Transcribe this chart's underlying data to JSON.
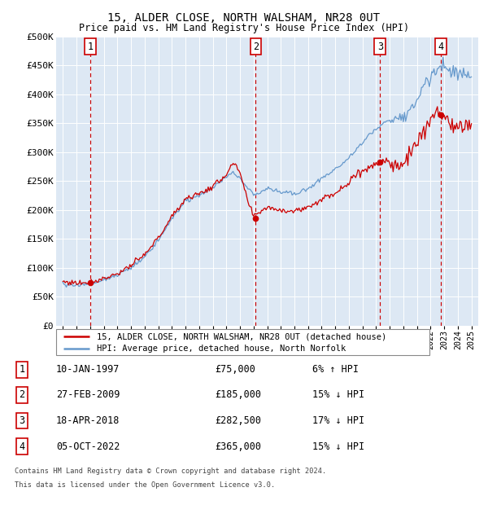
{
  "title1": "15, ALDER CLOSE, NORTH WALSHAM, NR28 0UT",
  "title2": "Price paid vs. HM Land Registry's House Price Index (HPI)",
  "legend_label_red": "15, ALDER CLOSE, NORTH WALSHAM, NR28 0UT (detached house)",
  "legend_label_blue": "HPI: Average price, detached house, North Norfolk",
  "footnote1": "Contains HM Land Registry data © Crown copyright and database right 2024.",
  "footnote2": "This data is licensed under the Open Government Licence v3.0.",
  "transactions": [
    {
      "num": 1,
      "date": "10-JAN-1997",
      "price": "£75,000",
      "relation": "6% ↑ HPI",
      "x": 1997.03
    },
    {
      "num": 2,
      "date": "27-FEB-2009",
      "price": "£185,000",
      "relation": "15% ↓ HPI",
      "x": 2009.16
    },
    {
      "num": 3,
      "date": "18-APR-2018",
      "price": "£282,500",
      "relation": "17% ↓ HPI",
      "x": 2018.29
    },
    {
      "num": 4,
      "date": "05-OCT-2022",
      "price": "£365,000",
      "relation": "15% ↓ HPI",
      "x": 2022.75
    }
  ],
  "transaction_prices": [
    75000,
    185000,
    282500,
    365000
  ],
  "ylim": [
    0,
    500000
  ],
  "yticks": [
    0,
    50000,
    100000,
    150000,
    200000,
    250000,
    300000,
    350000,
    400000,
    450000,
    500000
  ],
  "plot_bg": "#dde8f4",
  "grid_color": "#ffffff",
  "red_line_color": "#cc0000",
  "blue_line_color": "#6699cc",
  "dashed_color": "#cc0000",
  "dot_color": "#cc0000",
  "box_edge_color": "#cc0000",
  "hpi_keypoints": {
    "1995.0": 72000,
    "1996.0": 70000,
    "1997.0": 72000,
    "1998.0": 79000,
    "1999.0": 88000,
    "2000.0": 100000,
    "2001.0": 118000,
    "2002.0": 148000,
    "2003.0": 185000,
    "2004.0": 215000,
    "2005.0": 225000,
    "2006.0": 238000,
    "2007.0": 258000,
    "2007.5": 265000,
    "2008.0": 255000,
    "2008.5": 240000,
    "2009.0": 225000,
    "2009.5": 230000,
    "2010.0": 238000,
    "2011.0": 232000,
    "2012.0": 228000,
    "2013.0": 237000,
    "2014.0": 255000,
    "2015.0": 270000,
    "2016.0": 290000,
    "2017.0": 315000,
    "2017.5": 330000,
    "2018.0": 340000,
    "2018.5": 350000,
    "2019.0": 355000,
    "2019.5": 360000,
    "2020.0": 358000,
    "2020.5": 372000,
    "2021.0": 390000,
    "2021.5": 415000,
    "2022.0": 430000,
    "2022.5": 445000,
    "2023.0": 445000,
    "2023.5": 438000,
    "2024.0": 440000,
    "2025.0": 432000
  },
  "red_keypoints": {
    "1995.0": 76000,
    "1996.0": 74000,
    "1997.0": 75000,
    "1998.0": 82000,
    "1999.0": 90000,
    "2000.0": 104000,
    "2001.0": 122000,
    "2002.0": 152000,
    "2003.0": 188000,
    "2004.0": 220000,
    "2005.0": 228000,
    "2006.0": 240000,
    "2007.0": 262000,
    "2007.5": 280000,
    "2008.0": 265000,
    "2008.5": 220000,
    "2009.0": 188000,
    "2009.5": 198000,
    "2010.0": 205000,
    "2011.0": 200000,
    "2012.0": 198000,
    "2013.0": 205000,
    "2014.0": 218000,
    "2015.0": 230000,
    "2016.0": 248000,
    "2017.0": 268000,
    "2017.5": 275000,
    "2018.0": 282000,
    "2018.5": 285000,
    "2019.0": 280000,
    "2019.5": 275000,
    "2020.0": 278000,
    "2020.5": 295000,
    "2021.0": 318000,
    "2021.5": 340000,
    "2022.0": 350000,
    "2022.5": 365000,
    "2023.0": 358000,
    "2023.5": 345000,
    "2024.0": 350000,
    "2025.0": 342000
  }
}
